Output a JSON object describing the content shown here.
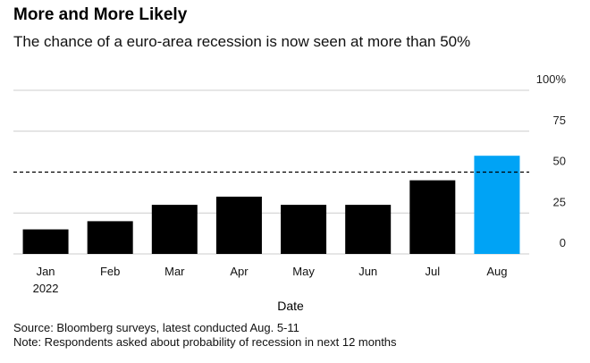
{
  "title": "More and More Likely",
  "subtitle": "The chance of a euro-area recession is now seen at more than 50%",
  "source": "Source: Bloomberg surveys, latest conducted Aug. 5-11",
  "note": "Note: Respondents asked about probability of recession in next 12 months",
  "colors": {
    "bar": "#000000",
    "highlight": "#00a3f5",
    "grid": "#cccccc",
    "reference": "#000000"
  },
  "chart_data": {
    "type": "bar",
    "categories": [
      "Jan",
      "Feb",
      "Mar",
      "Apr",
      "May",
      "Jun",
      "Jul",
      "Aug"
    ],
    "category_sublabels": [
      "2022",
      "",
      "",
      "",
      "",
      "",
      "",
      ""
    ],
    "values": [
      15,
      20,
      30,
      35,
      30,
      30,
      45,
      60
    ],
    "highlight_index": 7,
    "xlabel": "Date",
    "ylabel": "",
    "ylim": [
      0,
      100
    ],
    "yticks": [
      0,
      25,
      50,
      75,
      100
    ],
    "ytick_labels": [
      "0",
      "25",
      "50",
      "75",
      "100%"
    ],
    "reference_line": 50,
    "grid": true,
    "y_axis_side": "right"
  }
}
